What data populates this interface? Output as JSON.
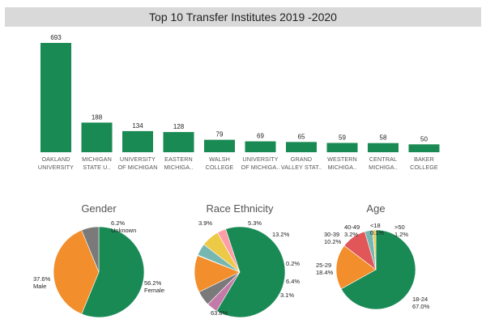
{
  "chart_data": [
    {
      "type": "bar",
      "title": "Top 10 Transfer Institutes 2019 -2020",
      "xlabel": "",
      "ylabel": "",
      "ylim": [
        0,
        720
      ],
      "grid": false,
      "color": "#1a8a54",
      "categories": [
        [
          "OAKLAND",
          "UNIVERSITY"
        ],
        [
          "MICHIGAN",
          "STATE U.."
        ],
        [
          "UNIVERSITY",
          "OF MICHIGAN"
        ],
        [
          "EASTERN",
          "MICHIGA.."
        ],
        [
          "WALSH",
          "COLLEGE"
        ],
        [
          "UNIVERSITY",
          "OF MICHIGA.."
        ],
        [
          "GRAND",
          "VALLEY STAT.."
        ],
        [
          "WESTERN",
          "MICHIGA.."
        ],
        [
          "CENTRAL",
          "MICHIGA.."
        ],
        [
          "BAKER",
          "COLLEGE"
        ]
      ],
      "values": [
        693,
        188,
        134,
        128,
        79,
        69,
        65,
        59,
        58,
        50
      ],
      "value_labels": [
        "693",
        "188",
        "134",
        "128",
        "79",
        "69",
        "65",
        "59",
        "58",
        "50"
      ]
    },
    {
      "type": "pie",
      "title": "Gender",
      "slices": [
        {
          "name": "Female",
          "value": 56.2,
          "label": "56.2%",
          "color": "#1a8a54"
        },
        {
          "name": "Male",
          "value": 37.6,
          "label": "37.6%",
          "color": "#f28e2b"
        },
        {
          "name": "Unknown",
          "value": 6.2,
          "label": "6.2%",
          "color": "#7a7a7a"
        }
      ]
    },
    {
      "type": "pie",
      "title": "Race Ethnicity",
      "slices": [
        {
          "name": "",
          "value": 63.6,
          "label": "63.6%",
          "color": "#1a8a54"
        },
        {
          "name": "",
          "value": 3.9,
          "label": "3.9%",
          "color": "#c47aa8"
        },
        {
          "name": "",
          "value": 5.3,
          "label": "5.3%",
          "color": "#7a7a7a"
        },
        {
          "name": "",
          "value": 13.2,
          "label": "13.2%",
          "color": "#f28e2b"
        },
        {
          "name": "",
          "value": 0.2,
          "label": "0.2%",
          "color": "#4e79a7"
        },
        {
          "name": "",
          "value": 4.3,
          "label": "",
          "color": "#76b7b2"
        },
        {
          "name": "",
          "value": 6.4,
          "label": "6.4%",
          "color": "#edc948"
        },
        {
          "name": "",
          "value": 3.1,
          "label": "3.1%",
          "color": "#ff9da7"
        }
      ]
    },
    {
      "type": "pie",
      "title": "Age",
      "slices": [
        {
          "name": "18-24",
          "value": 67.0,
          "label": "67.0%",
          "color": "#1a8a54"
        },
        {
          "name": "25-29",
          "value": 18.4,
          "label": "18.4%",
          "color": "#f28e2b"
        },
        {
          "name": "30-39",
          "value": 10.2,
          "label": "10.2%",
          "color": "#e15759"
        },
        {
          "name": "40-49",
          "value": 3.2,
          "label": "3.2%",
          "color": "#76b7b2"
        },
        {
          "name": "<18",
          "value": 0.1,
          "label": "0.1%",
          "color": "#4e79a7"
        },
        {
          "name": ">50",
          "value": 1.2,
          "label": "1.2%",
          "color": "#edc948"
        }
      ]
    }
  ]
}
